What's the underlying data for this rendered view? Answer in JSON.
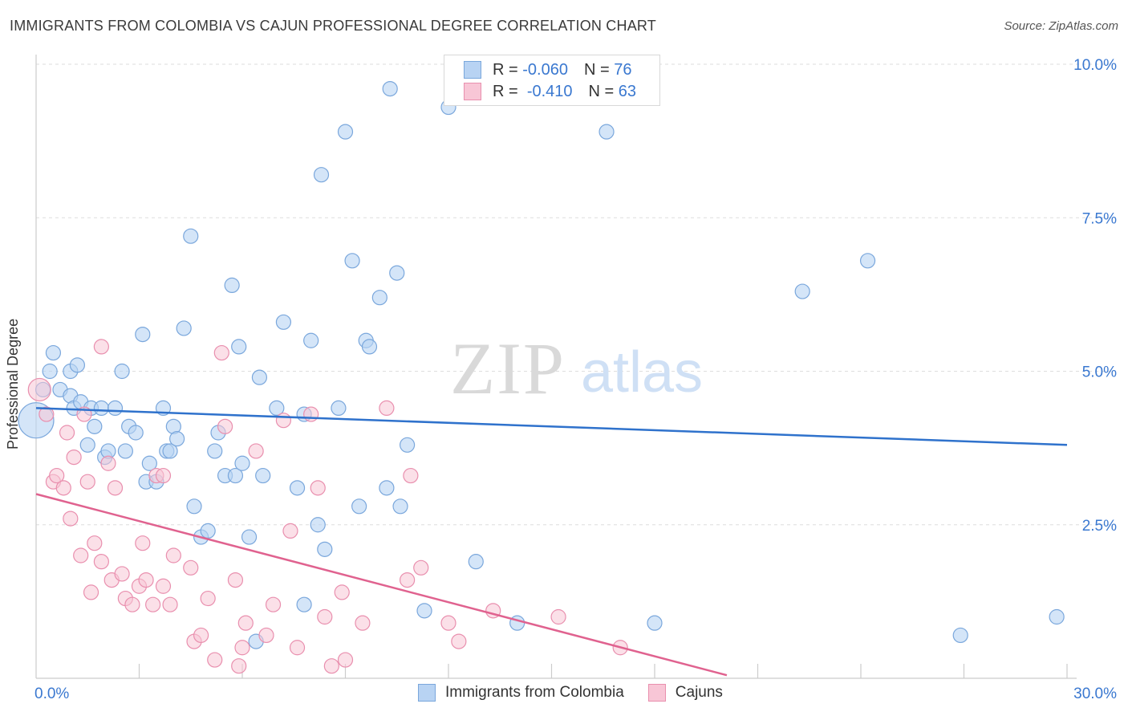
{
  "title": "IMMIGRANTS FROM COLOMBIA VS CAJUN PROFESSIONAL DEGREE CORRELATION CHART",
  "source": "Source: ZipAtlas.com",
  "watermark": {
    "zip": "ZIP",
    "atlas": "atlas"
  },
  "legend_top": {
    "rows": [
      {
        "r_label": "R =",
        "r_value": "-0.060",
        "n_label": "N =",
        "n_value": "76"
      },
      {
        "r_label": "R =",
        "r_value": "-0.410",
        "n_label": "N =",
        "n_value": "63"
      }
    ]
  },
  "colors": {
    "blue_fill": "#b8d3f3",
    "blue_stroke": "#7aa7dc",
    "blue_line": "#2f72cc",
    "pink_fill": "#f8c6d6",
    "pink_stroke": "#e98fae",
    "pink_line": "#e0628f",
    "tick_text": "#3a78d0",
    "grid": "#dddddd"
  },
  "chart_data": {
    "type": "scatter",
    "title": "IMMIGRANTS FROM COLOMBIA VS CAJUN PROFESSIONAL DEGREE CORRELATION CHART",
    "xlabel": "",
    "ylabel": "Professional Degree",
    "xlim": [
      0,
      30
    ],
    "ylim": [
      0,
      10
    ],
    "x_tick_labels": [
      "0.0%",
      "30.0%"
    ],
    "y_ticks": [
      2.5,
      5.0,
      7.5,
      10.0
    ],
    "y_tick_labels": [
      "2.5%",
      "5.0%",
      "7.5%",
      "10.0%"
    ],
    "grid": true,
    "legend_position": "bottom",
    "series": [
      {
        "name": "Immigrants from Colombia",
        "r": -0.06,
        "n": 76,
        "trend": {
          "x": [
            0,
            30
          ],
          "y": [
            4.4,
            3.8
          ]
        },
        "points": [
          [
            0.0,
            4.2
          ],
          [
            0.2,
            4.7
          ],
          [
            0.4,
            5.0
          ],
          [
            0.5,
            5.3
          ],
          [
            0.7,
            4.7
          ],
          [
            1.0,
            5.0
          ],
          [
            1.0,
            4.6
          ],
          [
            1.1,
            4.4
          ],
          [
            1.2,
            5.1
          ],
          [
            1.3,
            4.5
          ],
          [
            1.5,
            3.8
          ],
          [
            1.6,
            4.4
          ],
          [
            1.7,
            4.1
          ],
          [
            1.9,
            4.4
          ],
          [
            2.0,
            3.6
          ],
          [
            2.1,
            3.7
          ],
          [
            2.3,
            4.4
          ],
          [
            2.5,
            5.0
          ],
          [
            2.6,
            3.7
          ],
          [
            2.7,
            4.1
          ],
          [
            2.9,
            4.0
          ],
          [
            3.1,
            5.6
          ],
          [
            3.2,
            3.2
          ],
          [
            3.3,
            3.5
          ],
          [
            3.5,
            3.2
          ],
          [
            3.7,
            4.4
          ],
          [
            3.8,
            3.7
          ],
          [
            3.9,
            3.7
          ],
          [
            4.0,
            4.1
          ],
          [
            4.1,
            3.9
          ],
          [
            4.3,
            5.7
          ],
          [
            4.5,
            7.2
          ],
          [
            4.6,
            2.8
          ],
          [
            4.8,
            2.3
          ],
          [
            5.0,
            2.4
          ],
          [
            5.2,
            3.7
          ],
          [
            5.3,
            4.0
          ],
          [
            5.5,
            3.3
          ],
          [
            5.7,
            6.4
          ],
          [
            5.8,
            3.3
          ],
          [
            5.9,
            5.4
          ],
          [
            6.0,
            3.5
          ],
          [
            6.2,
            2.3
          ],
          [
            6.4,
            0.6
          ],
          [
            6.5,
            4.9
          ],
          [
            6.6,
            3.3
          ],
          [
            7.0,
            4.4
          ],
          [
            7.2,
            5.8
          ],
          [
            7.6,
            3.1
          ],
          [
            7.8,
            1.2
          ],
          [
            7.8,
            4.3
          ],
          [
            8.0,
            5.5
          ],
          [
            8.2,
            2.5
          ],
          [
            8.3,
            8.2
          ],
          [
            8.4,
            2.1
          ],
          [
            8.8,
            4.4
          ],
          [
            9.0,
            8.9
          ],
          [
            9.2,
            6.8
          ],
          [
            9.4,
            2.8
          ],
          [
            9.6,
            5.5
          ],
          [
            9.7,
            5.4
          ],
          [
            10.0,
            6.2
          ],
          [
            10.2,
            3.1
          ],
          [
            10.3,
            9.6
          ],
          [
            10.5,
            6.6
          ],
          [
            10.6,
            2.8
          ],
          [
            10.8,
            3.8
          ],
          [
            11.3,
            1.1
          ],
          [
            12.0,
            9.3
          ],
          [
            12.8,
            1.9
          ],
          [
            14.0,
            0.9
          ],
          [
            16.6,
            8.9
          ],
          [
            18.0,
            0.9
          ],
          [
            22.3,
            6.3
          ],
          [
            24.2,
            6.8
          ],
          [
            26.9,
            0.7
          ],
          [
            29.7,
            1.0
          ]
        ]
      },
      {
        "name": "Cajuns",
        "r": -0.41,
        "n": 63,
        "trend": {
          "x": [
            0,
            20.1
          ],
          "y": [
            3.0,
            0.05
          ]
        },
        "points": [
          [
            0.1,
            4.7
          ],
          [
            0.3,
            4.3
          ],
          [
            0.5,
            3.2
          ],
          [
            0.6,
            3.3
          ],
          [
            0.8,
            3.1
          ],
          [
            0.9,
            4.0
          ],
          [
            1.0,
            2.6
          ],
          [
            1.1,
            3.6
          ],
          [
            1.3,
            2.0
          ],
          [
            1.4,
            4.3
          ],
          [
            1.5,
            3.2
          ],
          [
            1.6,
            1.4
          ],
          [
            1.7,
            2.2
          ],
          [
            1.9,
            5.4
          ],
          [
            1.9,
            1.9
          ],
          [
            2.1,
            3.5
          ],
          [
            2.2,
            1.6
          ],
          [
            2.3,
            3.1
          ],
          [
            2.5,
            1.7
          ],
          [
            2.6,
            1.3
          ],
          [
            2.8,
            1.2
          ],
          [
            3.0,
            1.5
          ],
          [
            3.1,
            2.2
          ],
          [
            3.2,
            1.6
          ],
          [
            3.4,
            1.2
          ],
          [
            3.5,
            3.3
          ],
          [
            3.7,
            3.3
          ],
          [
            3.7,
            1.5
          ],
          [
            3.9,
            1.2
          ],
          [
            4.0,
            2.0
          ],
          [
            4.5,
            1.8
          ],
          [
            4.6,
            0.6
          ],
          [
            4.8,
            0.7
          ],
          [
            5.0,
            1.3
          ],
          [
            5.2,
            0.3
          ],
          [
            5.4,
            5.3
          ],
          [
            5.5,
            4.1
          ],
          [
            5.8,
            1.6
          ],
          [
            5.9,
            0.2
          ],
          [
            6.0,
            0.5
          ],
          [
            6.1,
            0.9
          ],
          [
            6.4,
            3.7
          ],
          [
            6.7,
            0.7
          ],
          [
            6.9,
            1.2
          ],
          [
            7.2,
            4.2
          ],
          [
            7.4,
            2.4
          ],
          [
            7.6,
            0.5
          ],
          [
            8.0,
            4.3
          ],
          [
            8.2,
            3.1
          ],
          [
            8.4,
            1.0
          ],
          [
            8.6,
            0.2
          ],
          [
            8.9,
            1.4
          ],
          [
            9.0,
            0.3
          ],
          [
            9.5,
            0.9
          ],
          [
            10.2,
            4.4
          ],
          [
            10.8,
            1.6
          ],
          [
            10.9,
            3.3
          ],
          [
            11.2,
            1.8
          ],
          [
            12.0,
            0.9
          ],
          [
            12.3,
            0.6
          ],
          [
            13.3,
            1.1
          ],
          [
            15.2,
            1.0
          ],
          [
            17.0,
            0.5
          ]
        ]
      }
    ]
  },
  "bottom_legend": {
    "items": [
      {
        "label": "Immigrants from Colombia"
      },
      {
        "label": "Cajuns"
      }
    ]
  }
}
